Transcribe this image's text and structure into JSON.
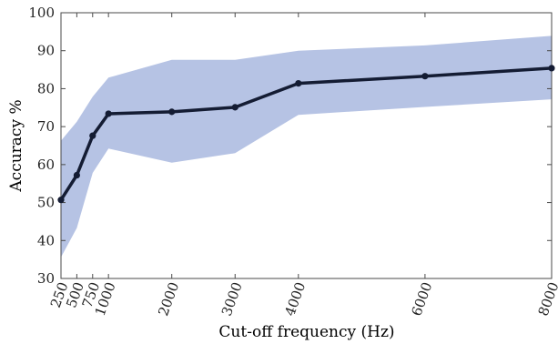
{
  "chart_data": {
    "type": "line",
    "title": "",
    "xlabel": "Cut-off frequency (Hz)",
    "ylabel": "Accuracy %",
    "x": [
      250,
      500,
      750,
      1000,
      2000,
      3000,
      4000,
      6000,
      8000
    ],
    "x_tick_labels": [
      "250",
      "500",
      "750",
      "1000",
      "2000",
      "3000",
      "4000",
      "6000",
      "8000"
    ],
    "y_tick_labels": [
      "30",
      "40",
      "50",
      "60",
      "70",
      "80",
      "90",
      "100"
    ],
    "xlim": [
      250,
      8000
    ],
    "ylim": [
      30,
      100
    ],
    "series": [
      {
        "values": [
          50.7,
          57.2,
          67.6,
          73.4,
          73.9,
          75.1,
          81.4,
          83.3,
          85.4
        ],
        "color": "#141c33"
      }
    ],
    "band": {
      "upper": [
        66.3,
        71.3,
        77.9,
        82.9,
        87.6,
        87.6,
        90.0,
        91.4,
        93.9
      ],
      "lower": [
        35.6,
        43.3,
        57.8,
        64.2,
        60.5,
        63.0,
        73.1,
        75.2,
        77.2
      ],
      "color": "#b6c3e4"
    },
    "grid": false,
    "legend": "none"
  }
}
